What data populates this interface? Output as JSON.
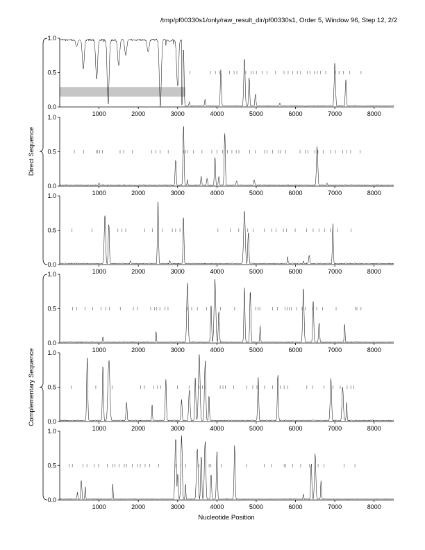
{
  "header": "/tmp/pf00330s1/only/raw_result_dir/pf00330s1, Order 5, Window 96, Step 12, 2/2",
  "xlabel": "Nucleotide Position",
  "groups": [
    {
      "label": "Direct Sequence",
      "panels": [
        0,
        1,
        2
      ]
    },
    {
      "label": "Complementary Sequence",
      "panels": [
        3,
        4,
        5
      ]
    }
  ],
  "chart_data": {
    "type": "line",
    "xlim": [
      0,
      8500
    ],
    "ylim": [
      0,
      1
    ],
    "xticks": [
      1000,
      2000,
      3000,
      4000,
      5000,
      6000,
      7000,
      8000
    ],
    "xtick_labels": [
      "1000",
      "2000",
      "3000",
      "4000",
      "5000",
      "6000",
      "7000",
      "8000"
    ],
    "yticks": [
      0,
      0.5,
      1
    ],
    "ytick_labels": [
      "0.0",
      "0.5",
      "1.0"
    ],
    "panels": [
      {
        "baseline": 0.01,
        "peaks": [
          [
            280,
            0.92,
            80
          ],
          [
            550,
            0.88,
            60
          ],
          [
            700,
            0.95,
            70
          ],
          [
            760,
            0.4,
            40
          ],
          [
            1100,
            1.0,
            70
          ],
          [
            1180,
            0.95,
            60
          ],
          [
            1300,
            0.75,
            50
          ],
          [
            1450,
            0.6,
            50
          ],
          [
            1700,
            0.55,
            40
          ],
          [
            2000,
            0.92,
            60
          ],
          [
            2200,
            0.85,
            50
          ],
          [
            2450,
            1.0,
            50
          ],
          [
            2700,
            0.98,
            60
          ],
          [
            2900,
            0.97,
            50
          ],
          [
            3050,
            1.0,
            60
          ],
          [
            3150,
            0.9,
            40
          ],
          [
            3300,
            0.08,
            40
          ],
          [
            3700,
            0.12,
            40
          ],
          [
            4100,
            0.55,
            40
          ],
          [
            4700,
            0.75,
            50
          ],
          [
            4820,
            0.45,
            40
          ],
          [
            4980,
            0.2,
            40
          ],
          [
            5600,
            0.06,
            40
          ],
          [
            7000,
            0.65,
            50
          ],
          [
            7280,
            0.42,
            40
          ]
        ],
        "plateau": [
          [
            0,
            1.0
          ],
          [
            3100,
            1.0
          ]
        ],
        "gaps": [
          [
            430,
            0.88
          ],
          [
            600,
            0.55
          ],
          [
            940,
            0.4
          ],
          [
            1230,
            0.0
          ],
          [
            1500,
            0.6
          ],
          [
            1680,
            0.75
          ],
          [
            2250,
            0.8
          ],
          [
            2560,
            0.0
          ],
          [
            2800,
            0.95
          ],
          [
            3000,
            0.3
          ]
        ],
        "ticks": {
          "y": 0.5,
          "from": 3200,
          "to": 7600,
          "density": 0.6
        },
        "band": {
          "x1": 0,
          "x2": 3200,
          "y1": 0.15,
          "y2": 0.29
        }
      },
      {
        "baseline": 0.01,
        "peaks": [
          [
            1000,
            0.05,
            40
          ],
          [
            2950,
            0.42,
            40
          ],
          [
            3150,
            0.95,
            40
          ],
          [
            3250,
            0.1,
            30
          ],
          [
            3600,
            0.15,
            40
          ],
          [
            3750,
            0.12,
            40
          ],
          [
            3950,
            0.45,
            40
          ],
          [
            4050,
            0.15,
            40
          ],
          [
            4200,
            0.85,
            40
          ],
          [
            4500,
            0.08,
            40
          ],
          [
            4950,
            0.1,
            40
          ],
          [
            6550,
            0.6,
            50
          ],
          [
            6800,
            0.05,
            40
          ]
        ],
        "ticks": {
          "y": 0.5,
          "from": 100,
          "to": 7600,
          "density": 0.45
        }
      },
      {
        "baseline": 0.01,
        "peaks": [
          [
            1150,
            0.75,
            50
          ],
          [
            1250,
            0.65,
            40
          ],
          [
            1800,
            0.06,
            40
          ],
          [
            2500,
            0.96,
            40
          ],
          [
            2800,
            0.07,
            30
          ],
          [
            3150,
            0.75,
            35
          ],
          [
            4700,
            0.8,
            60
          ],
          [
            4800,
            0.5,
            40
          ],
          [
            5800,
            0.12,
            30
          ],
          [
            6200,
            0.06,
            30
          ],
          [
            6350,
            0.14,
            40
          ],
          [
            6950,
            0.6,
            35
          ]
        ],
        "ticks": {
          "y": 0.5,
          "from": 100,
          "to": 7600,
          "density": 0.45
        }
      },
      {
        "baseline": 0.01,
        "peaks": [
          [
            1100,
            0.1,
            30
          ],
          [
            2450,
            0.18,
            30
          ],
          [
            3250,
            0.97,
            50
          ],
          [
            3850,
            0.6,
            40
          ],
          [
            3950,
            0.95,
            60
          ],
          [
            4050,
            0.5,
            40
          ],
          [
            4700,
            0.85,
            40
          ],
          [
            4850,
            0.82,
            40
          ],
          [
            5100,
            0.25,
            30
          ],
          [
            6200,
            0.82,
            50
          ],
          [
            6450,
            0.65,
            40
          ],
          [
            6600,
            0.3,
            40
          ],
          [
            7250,
            0.3,
            30
          ]
        ],
        "ticks": {
          "y": 0.5,
          "from": 100,
          "to": 7600,
          "density": 0.45
        }
      },
      {
        "baseline": 0.01,
        "peaks": [
          [
            700,
            0.95,
            40
          ],
          [
            1100,
            0.85,
            40
          ],
          [
            1250,
            0.95,
            70
          ],
          [
            1700,
            0.3,
            40
          ],
          [
            2350,
            0.25,
            30
          ],
          [
            2700,
            0.65,
            40
          ],
          [
            3100,
            0.35,
            40
          ],
          [
            3300,
            0.5,
            50
          ],
          [
            3450,
            0.65,
            40
          ],
          [
            3550,
            0.98,
            60
          ],
          [
            3700,
            0.9,
            50
          ],
          [
            3800,
            0.4,
            30
          ],
          [
            5050,
            0.7,
            40
          ],
          [
            5550,
            0.7,
            40
          ],
          [
            6900,
            0.65,
            50
          ],
          [
            7200,
            0.55,
            50
          ],
          [
            7300,
            0.3,
            30
          ]
        ],
        "ticks": {
          "y": 0.5,
          "from": 100,
          "to": 7600,
          "density": 0.45
        }
      },
      {
        "baseline": 0.01,
        "peaks": [
          [
            450,
            0.12,
            30
          ],
          [
            550,
            0.3,
            40
          ],
          [
            650,
            0.2,
            30
          ],
          [
            1350,
            0.25,
            25
          ],
          [
            2950,
            0.98,
            50
          ],
          [
            3000,
            0.4,
            40
          ],
          [
            3100,
            1.0,
            50
          ],
          [
            3200,
            0.25,
            30
          ],
          [
            3500,
            0.8,
            60
          ],
          [
            3600,
            0.7,
            40
          ],
          [
            3700,
            0.95,
            50
          ],
          [
            3850,
            0.4,
            40
          ],
          [
            4000,
            0.75,
            40
          ],
          [
            4450,
            0.8,
            40
          ],
          [
            6200,
            0.1,
            30
          ],
          [
            6400,
            0.55,
            40
          ],
          [
            6500,
            0.7,
            50
          ],
          [
            6650,
            0.3,
            30
          ]
        ],
        "ticks": {
          "y": 0.5,
          "from": 100,
          "to": 7600,
          "density": 0.45
        }
      }
    ]
  }
}
